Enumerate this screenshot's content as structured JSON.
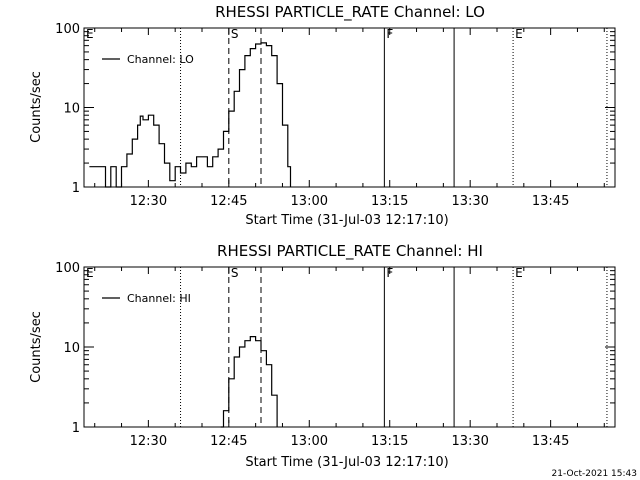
{
  "footer_timestamp": "21-Oct-2021 15:43",
  "chart_data": [
    {
      "type": "line",
      "title": "RHESSI PARTICLE_RATE Channel: LO",
      "xlabel": "Start Time (31-Jul-03 12:17:10)",
      "ylabel": "Counts/sec",
      "yscale": "log",
      "ylim": [
        1,
        100
      ],
      "xlim": [
        "12:18",
        "13:57"
      ],
      "x_ticks": [
        "12:30",
        "12:45",
        "13:00",
        "13:15",
        "13:30",
        "13:45"
      ],
      "y_ticks": [
        "1",
        "10",
        "100"
      ],
      "legend": {
        "entries": [
          "Channel: LO"
        ],
        "placement": "top-left"
      },
      "grid": false,
      "series": [
        {
          "name": "Channel: LO",
          "points": [
            [
              "12:19",
              1.8
            ],
            [
              "12:20",
              1.8
            ],
            [
              "12:21",
              1.8
            ],
            [
              "12:22",
              1.0
            ],
            [
              "12:23",
              1.8
            ],
            [
              "12:24",
              1.0
            ],
            [
              "12:25",
              1.8
            ],
            [
              "12:26",
              2.6
            ],
            [
              "12:27",
              4.0
            ],
            [
              "12:28",
              6.0
            ],
            [
              "12:28.5",
              7.8
            ],
            [
              "12:29",
              7.0
            ],
            [
              "12:30",
              8.0
            ],
            [
              "12:31",
              6.0
            ],
            [
              "12:32",
              3.5
            ],
            [
              "12:33",
              2.0
            ],
            [
              "12:34",
              1.2
            ],
            [
              "12:35",
              1.8
            ],
            [
              "12:36",
              1.5
            ],
            [
              "12:37",
              2.0
            ],
            [
              "12:38",
              1.8
            ],
            [
              "12:39",
              2.4
            ],
            [
              "12:40",
              2.4
            ],
            [
              "12:41",
              1.8
            ],
            [
              "12:42",
              2.4
            ],
            [
              "12:43",
              3.0
            ],
            [
              "12:44",
              5.0
            ],
            [
              "12:45",
              9.0
            ],
            [
              "12:46",
              16.0
            ],
            [
              "12:47",
              30.0
            ],
            [
              "12:48",
              45.0
            ],
            [
              "12:49",
              55.0
            ],
            [
              "12:50",
              63.0
            ],
            [
              "12:51",
              65.0
            ],
            [
              "12:52",
              60.0
            ],
            [
              "12:53",
              45.0
            ],
            [
              "12:54",
              20.0
            ],
            [
              "12:55",
              6.0
            ],
            [
              "12:56",
              1.8
            ],
            [
              "12:56.5",
              1.0
            ]
          ]
        }
      ],
      "markers": [
        {
          "time": "12:16",
          "label": "E",
          "style": "dotted"
        },
        {
          "time": "12:36",
          "label": "",
          "style": "dotted"
        },
        {
          "time": "12:45",
          "label": "S",
          "style": "dashed"
        },
        {
          "time": "12:51",
          "label": "",
          "style": "dashed"
        },
        {
          "time": "13:14",
          "label": "F",
          "style": "solid"
        },
        {
          "time": "13:27",
          "label": "",
          "style": "solid"
        },
        {
          "time": "13:38",
          "label": "E",
          "style": "dotted"
        },
        {
          "time": "13:55.5",
          "label": "",
          "style": "dotted"
        }
      ]
    },
    {
      "type": "line",
      "title": "RHESSI PARTICLE_RATE Channel: HI",
      "xlabel": "Start Time (31-Jul-03 12:17:10)",
      "ylabel": "Counts/sec",
      "yscale": "log",
      "ylim": [
        1,
        100
      ],
      "xlim": [
        "12:18",
        "13:57"
      ],
      "x_ticks": [
        "12:30",
        "12:45",
        "13:00",
        "13:15",
        "13:30",
        "13:45"
      ],
      "y_ticks": [
        "1",
        "10",
        "100"
      ],
      "legend": {
        "entries": [
          "Channel: HI"
        ],
        "placement": "top-left"
      },
      "grid": false,
      "series": [
        {
          "name": "Channel: HI",
          "points": [
            [
              "12:43.5",
              1.0
            ],
            [
              "12:44",
              1.6
            ],
            [
              "12:45",
              4.0
            ],
            [
              "12:46",
              7.5
            ],
            [
              "12:47",
              10.0
            ],
            [
              "12:48",
              12.0
            ],
            [
              "12:49",
              13.5
            ],
            [
              "12:50",
              12.0
            ],
            [
              "12:51",
              9.0
            ],
            [
              "12:52",
              6.0
            ],
            [
              "12:53",
              2.5
            ],
            [
              "12:54",
              1.0
            ]
          ]
        }
      ],
      "markers": [
        {
          "time": "12:16",
          "label": "E",
          "style": "dotted"
        },
        {
          "time": "12:36",
          "label": "",
          "style": "dotted"
        },
        {
          "time": "12:45",
          "label": "S",
          "style": "dashed"
        },
        {
          "time": "12:51",
          "label": "",
          "style": "dashed"
        },
        {
          "time": "13:14",
          "label": "F",
          "style": "solid"
        },
        {
          "time": "13:27",
          "label": "",
          "style": "solid"
        },
        {
          "time": "13:38",
          "label": "E",
          "style": "dotted"
        },
        {
          "time": "13:55.5",
          "label": "",
          "style": "dotted"
        }
      ]
    }
  ]
}
